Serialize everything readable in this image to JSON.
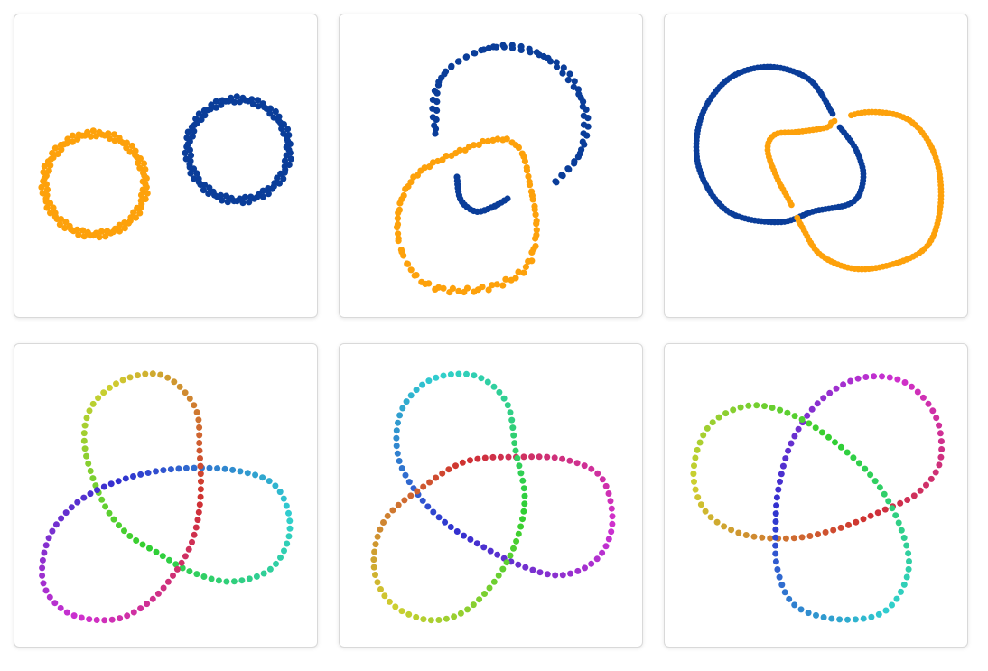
{
  "panels": [
    {
      "id": "p1",
      "colors": {
        "a": "#fda10b",
        "b": "#0a3d99"
      }
    },
    {
      "id": "p2",
      "colors": {
        "a": "#fda10b",
        "b": "#0a3d99"
      }
    },
    {
      "id": "p3",
      "colors": {
        "a": "#fda10b",
        "b": "#0a3d99"
      }
    },
    {
      "id": "p4",
      "coloring": "rainbow-gradient"
    },
    {
      "id": "p5",
      "coloring": "rainbow-gradient"
    },
    {
      "id": "p6",
      "coloring": "rainbow-gradient"
    }
  ]
}
